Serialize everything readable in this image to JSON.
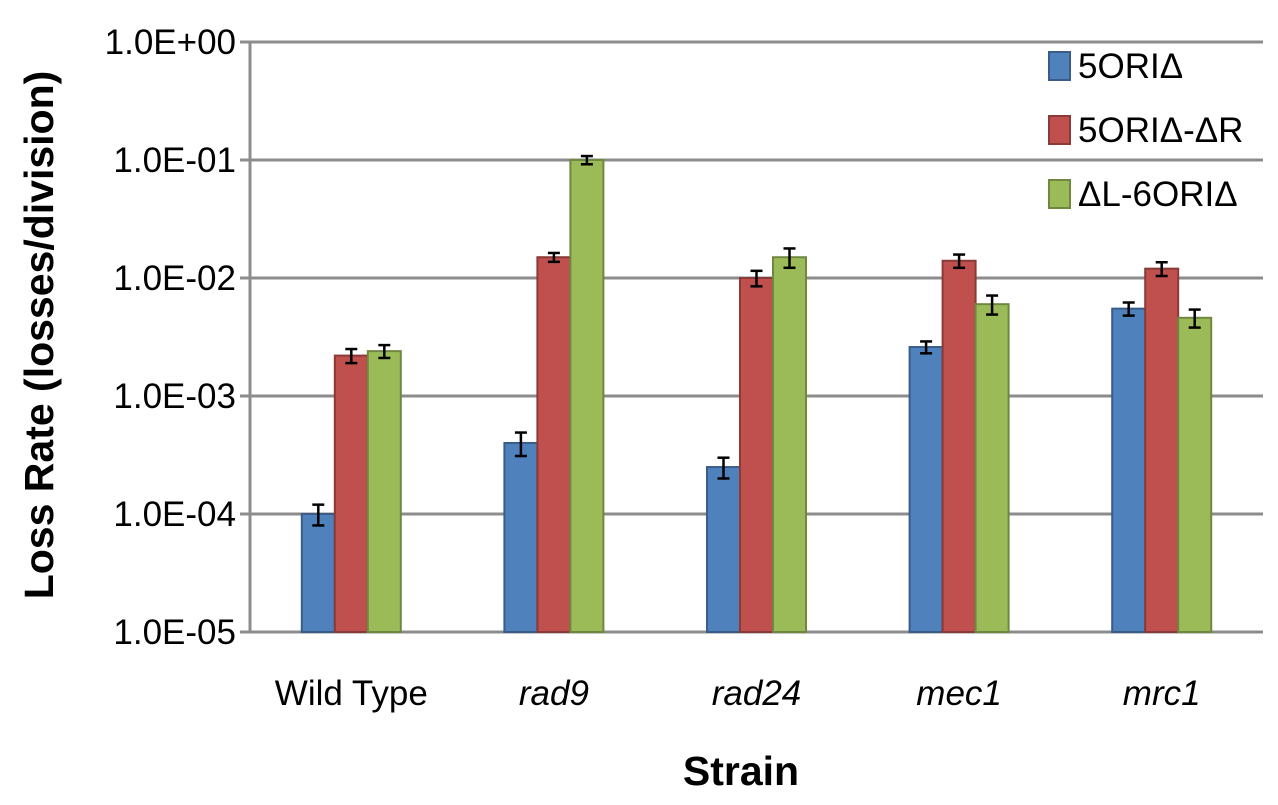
{
  "chart_data": {
    "type": "bar",
    "y_scale": "log",
    "ylim": [
      1e-05,
      1
    ],
    "y_ticks": [
      "1.0E+00",
      "1.0E-01",
      "1.0E-02",
      "1.0E-03",
      "1.0E-04",
      "1.0E-05"
    ],
    "y_tick_values": [
      1,
      0.1,
      0.01,
      0.001,
      0.0001,
      1e-05
    ],
    "xlabel": "Strain",
    "ylabel": "Loss Rate  (losses/division)",
    "grid": true,
    "legend_position": "top-right",
    "categories": [
      "Wild Type",
      "rad9",
      "rad24",
      "mec1",
      "mrc1"
    ],
    "category_italic": [
      false,
      true,
      true,
      true,
      true
    ],
    "series": [
      {
        "name": "5ORIΔ",
        "color": "#4F81BD",
        "values": [
          0.0001,
          0.0004,
          0.00025,
          0.0026,
          0.0055
        ],
        "error": [
          2e-05,
          9e-05,
          5e-05,
          0.0003,
          0.0007
        ]
      },
      {
        "name": "5ORIΔ-ΔR",
        "color": "#C0504D",
        "values": [
          0.0022,
          0.015,
          0.01,
          0.014,
          0.012
        ],
        "error": [
          0.0003,
          0.0013,
          0.0015,
          0.0018,
          0.0016
        ]
      },
      {
        "name": "ΔL-6ORIΔ",
        "color": "#9BBB59",
        "values": [
          0.0024,
          0.1,
          0.015,
          0.006,
          0.0046
        ],
        "error": [
          0.0003,
          0.008,
          0.0028,
          0.0011,
          0.0008
        ]
      }
    ]
  }
}
